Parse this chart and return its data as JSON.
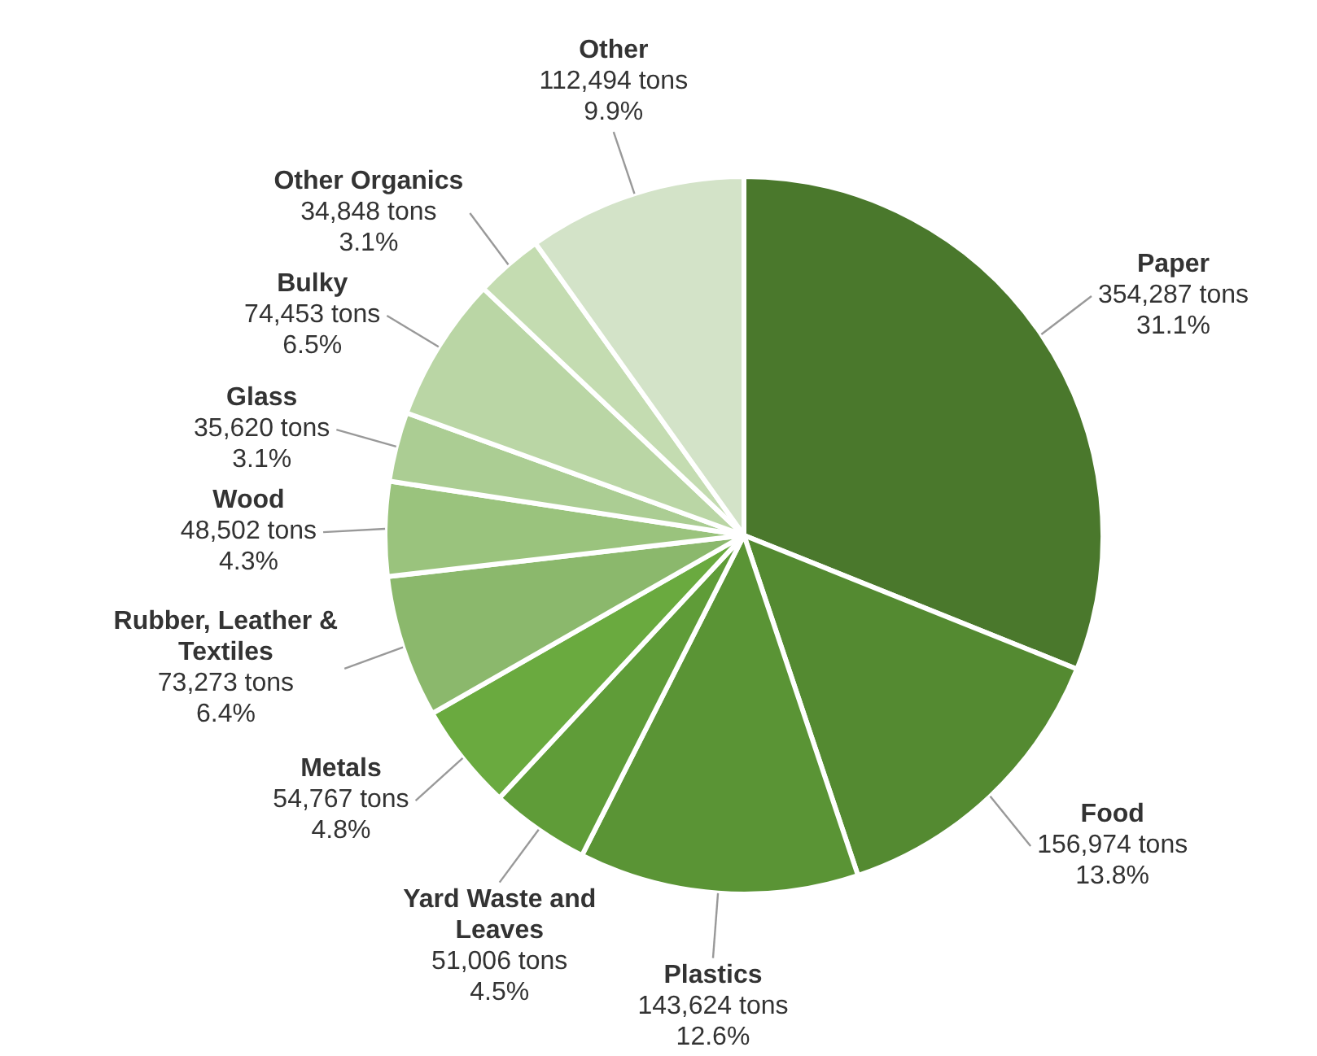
{
  "chart_data": {
    "type": "pie",
    "categories": [
      "Paper",
      "Food",
      "Plastics",
      "Yard Waste and Leaves",
      "Metals",
      "Rubber, Leather & Textiles",
      "Wood",
      "Glass",
      "Bulky",
      "Other Organics",
      "Other"
    ],
    "values": [
      354287,
      156974,
      143624,
      51006,
      54767,
      73273,
      48502,
      35620,
      74453,
      34848,
      112494
    ],
    "value_labels": [
      "354,287 tons\n31.1%",
      "156,974 tons\n13.8%",
      "143,624 tons\n12.6%",
      "51,006 tons\n4.5%",
      "54,767 tons\n4.8%",
      "73,273 tons\n6.4%",
      "48,502 tons\n4.3%",
      "35,620 tons\n3.1%",
      "74,453 tons\n6.5%",
      "34,848 tons\n3.1%",
      "112,494 tons\n9.9%"
    ],
    "colors": [
      "#4a782c",
      "#548a31",
      "#5a9435",
      "#5f9c38",
      "#6aaa3f",
      "#8bb86c",
      "#9ac37d",
      "#abcd93",
      "#bad6a5",
      "#c4dcb1",
      "#d3e3c8"
    ],
    "legend": false
  }
}
